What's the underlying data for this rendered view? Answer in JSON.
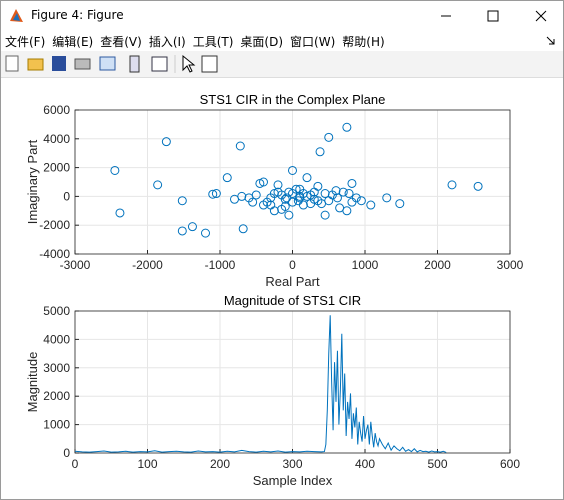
{
  "window": {
    "title": "Figure 4: Figure"
  },
  "menu": [
    "文件(F)",
    "编辑(E)",
    "查看(V)",
    "插入(I)",
    "工具(T)",
    "桌面(D)",
    "窗口(W)",
    "帮助(H)"
  ],
  "chart_data": [
    {
      "type": "scatter",
      "title": "STS1 CIR in the Complex Plane",
      "x_label": "Real Part",
      "y_label": "Imaginary Part",
      "color": "#0072bd",
      "grid": true,
      "xlim": [
        -3000,
        3000
      ],
      "ylim": [
        -4000,
        6000
      ],
      "xticks": [
        -3000,
        -2000,
        -1000,
        0,
        1000,
        2000,
        3000
      ],
      "yticks": [
        -4000,
        -2000,
        0,
        2000,
        4000,
        6000
      ],
      "x": [
        -2450,
        -2380,
        -1740,
        -1860,
        -1520,
        -1520,
        -1380,
        -1200,
        -1100,
        -1050,
        -900,
        -720,
        -680,
        -600,
        -500,
        -450,
        -400,
        -350,
        -300,
        -250,
        -200,
        -150,
        -100,
        -50,
        0,
        0,
        50,
        100,
        150,
        200,
        250,
        300,
        350,
        400,
        450,
        500,
        550,
        600,
        650,
        700,
        750,
        750,
        820,
        880,
        500,
        380,
        780,
        820,
        1080,
        1300,
        1480,
        2200,
        2560,
        -300,
        -100,
        100,
        200,
        -200,
        -50,
        -800,
        0,
        80,
        250,
        -400,
        300,
        150,
        -150,
        -550,
        620,
        450,
        950,
        -700,
        -250,
        100,
        -80,
        350
      ],
      "y": [
        1800,
        -1150,
        3800,
        800,
        -2400,
        -300,
        -2100,
        -2550,
        150,
        200,
        1300,
        3500,
        -2250,
        -100,
        100,
        900,
        1000,
        -400,
        -600,
        200,
        800,
        100,
        -200,
        300,
        1800,
        -400,
        500,
        -100,
        200,
        1300,
        100,
        -200,
        700,
        -500,
        -1300,
        -300,
        100,
        400,
        -800,
        300,
        4800,
        -1000,
        900,
        -100,
        4100,
        3100,
        200,
        -400,
        -600,
        -100,
        -500,
        800,
        700,
        -100,
        -700,
        0,
        0,
        300,
        -1300,
        -200,
        200,
        -300,
        -500,
        -600,
        300,
        -600,
        -900,
        -400,
        -100,
        200,
        -300,
        0,
        -1000,
        500,
        -100,
        -300
      ]
    },
    {
      "type": "line",
      "title": "Magnitude of STS1 CIR",
      "x_label": "Sample Index",
      "y_label": "Magnitude",
      "color": "#0072bd",
      "grid": true,
      "xlim": [
        0,
        600
      ],
      "ylim": [
        0,
        5000
      ],
      "xticks": [
        0,
        100,
        200,
        300,
        400,
        500,
        600
      ],
      "yticks": [
        0,
        1000,
        2000,
        3000,
        4000,
        5000
      ],
      "x": [
        0,
        10,
        20,
        30,
        40,
        50,
        60,
        70,
        80,
        90,
        100,
        110,
        120,
        130,
        140,
        150,
        160,
        170,
        180,
        190,
        200,
        210,
        220,
        230,
        240,
        250,
        260,
        270,
        280,
        290,
        300,
        310,
        320,
        330,
        340,
        344,
        346,
        348,
        350,
        352,
        354,
        356,
        358,
        360,
        362,
        364,
        366,
        368,
        370,
        372,
        374,
        376,
        378,
        380,
        382,
        384,
        386,
        388,
        390,
        392,
        394,
        396,
        398,
        400,
        402,
        404,
        406,
        408,
        410,
        412,
        414,
        416,
        418,
        420,
        424,
        428,
        432,
        436,
        440,
        444,
        448,
        452,
        456,
        460,
        464,
        468,
        472,
        476,
        480,
        484,
        488,
        492,
        496,
        500,
        504,
        508,
        512
      ],
      "values": [
        60,
        40,
        30,
        50,
        70,
        30,
        40,
        60,
        30,
        50,
        40,
        80,
        30,
        50,
        60,
        40,
        30,
        70,
        40,
        50,
        30,
        60,
        40,
        90,
        50,
        30,
        60,
        40,
        70,
        30,
        50,
        40,
        60,
        50,
        40,
        50,
        300,
        1500,
        3500,
        4850,
        2500,
        800,
        3200,
        1800,
        3600,
        1000,
        2200,
        4200,
        1500,
        2800,
        600,
        1800,
        1200,
        2100,
        500,
        1400,
        900,
        1600,
        300,
        1100,
        700,
        400,
        1300,
        500,
        800,
        1000,
        300,
        1100,
        600,
        200,
        700,
        400,
        250,
        500,
        300,
        150,
        350,
        100,
        250,
        150,
        80,
        200,
        60,
        120,
        50,
        150,
        40,
        90,
        50,
        60,
        30,
        70,
        40,
        50,
        30,
        60,
        20
      ]
    }
  ]
}
